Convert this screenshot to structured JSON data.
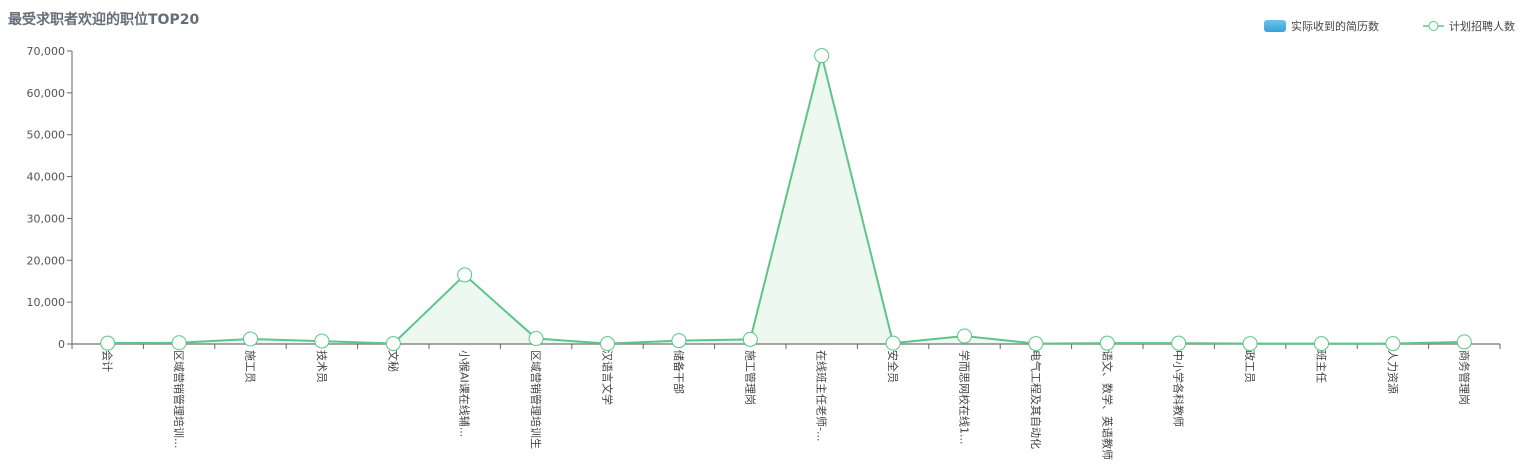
{
  "chart_data": {
    "type": "line",
    "title": "最受求职者欢迎的职位TOP20",
    "legend_position": "top-right",
    "categories": [
      "会计",
      "区域营销管理培训...",
      "施工员",
      "技术员",
      "文秘",
      "小猴AI课在线辅...",
      "区域营销管理培训生",
      "汉语言文学",
      "储备干部",
      "施工管理岗",
      "在线班主任老师-...",
      "安全员",
      "学而思网校在线1...",
      "电气工程及其自动化",
      "语文、数学、英语教师",
      "中小学各科教师",
      "政工员",
      "班主任",
      "人力资源",
      "商务管理岗"
    ],
    "ylim": [
      0,
      70000
    ],
    "yticks": [
      "0",
      "10,000",
      "20,000",
      "30,000",
      "40,000",
      "50,000",
      "60,000",
      "70,000"
    ],
    "grid": false,
    "series": [
      {
        "name": "实际收到的简历数",
        "kind": "bar",
        "color": "#3a9fd8"
      },
      {
        "name": "计划招聘人数",
        "kind": "area-line",
        "color": "#5cc58a",
        "fill": "#edf8f1",
        "values": [
          200,
          300,
          1200,
          700,
          100,
          16500,
          1300,
          100,
          800,
          1100,
          68900,
          200,
          1900,
          100,
          200,
          200,
          100,
          100,
          100,
          500
        ]
      }
    ]
  }
}
